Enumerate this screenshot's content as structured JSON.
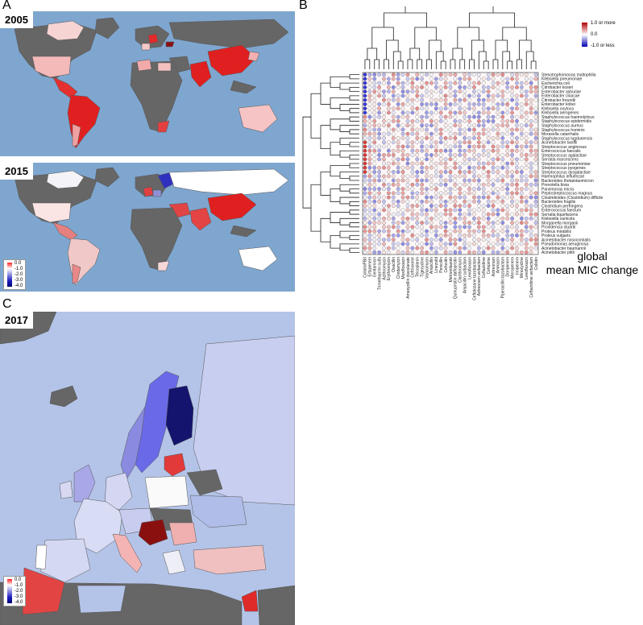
{
  "panel_labels": {
    "a": "A",
    "b": "B",
    "c": "C"
  },
  "maps": {
    "map2005": {
      "year": "2005"
    },
    "map2015": {
      "year": "2015"
    },
    "map2017": {
      "year": "2017"
    }
  },
  "map_legend": {
    "ticks": [
      "0.0",
      "-1.0",
      "-2.0",
      "-3.0",
      "-4.0"
    ]
  },
  "heatmap_legend": {
    "ticks": [
      "1.0 or more",
      "0.0",
      "-1.0 or less"
    ]
  },
  "global_label": {
    "line1": "global",
    "line2": "mean MIC change"
  },
  "colors": {
    "ocean": "#7fa6cf",
    "land_nodata": "#666666",
    "positive": "#e02020",
    "negative": "#20208a",
    "neutral": "#f7f7f7"
  },
  "chart_data": {
    "type": "heatmap",
    "rows": [
      "Stenotrophomonas maltophilia",
      "Klebsiella pneumoniae",
      "Escherichia coli",
      "Citrobacter koseri",
      "Enterobacter asburiae",
      "Enterobacter cloacae",
      "Citrobacter freundii",
      "Enterobacter kobei",
      "Klebsiella oxytoca",
      "Klebsiella aerogenes",
      "Staphylococcus haemolyticus",
      "Staphylococcus epidermidis",
      "Staphylococcus aureus",
      "Staphylococcus hominis",
      "Moraxella catarrhalis",
      "Staphylococcus lugdunensis",
      "Acinetobacter lwoffii",
      "Streptococcus anginosus",
      "Enterococcus faecalis",
      "Streptococcus agalactiae",
      "Serratia marcescens",
      "Streptococcus pneumoniae",
      "Streptococcus pyogenes",
      "Streptococcus dysgalactiae",
      "Haemophilus influenzae",
      "Bacteroides thetaiotaomicron",
      "Prevotella bivia",
      "Parvimonas micra",
      "Peptostreptococcus magnus",
      "Clostridioides (Clostridium) difficile",
      "Bacteroides fragilis",
      "Clostridium perfringens",
      "Enterococcus faecium",
      "Serratia liquefaciens",
      "Klebsiella variicola",
      "Morganella morganii",
      "Providencia stuartii",
      "Proteus mirabilis",
      "Proteus vulgaris",
      "Acinetobacter nosocomialis",
      "Pseudomonas aeruginosa",
      "Acinetobacter baumannii",
      "Acinetobacter pittii"
    ],
    "columns": [
      "ColistinPB0",
      "Ertapenem",
      "Gentamicin",
      "Trimethoprim sulfa",
      "Azithromycin",
      "Erythromycin",
      "Oxacillin",
      "Clindamycin",
      "Moxifloxacin",
      "Amoxycillin clavulanate",
      "Ceftriaxone",
      "Teicoplanin",
      "Tigecycline",
      "Vancomycin",
      "Ampicillin",
      "Linezolid",
      "Penicillin",
      "Cefoxitin",
      "Metronidazole",
      "Quinupristin dalfopristin",
      "Clarithromycin",
      "Ampicillin sulbactam",
      "Levofloxacin",
      "Ceftolozane tazobactam",
      "Aztreonam avibactam",
      "Ceftazidime",
      "Cefepime",
      "Aztreonam",
      "Amikacin",
      "Piperacillin tazobactam",
      "Doripenem",
      "Meropenem",
      "Imipenem",
      "Minocycline",
      "Levofloxacin",
      "Ceftazidime avibactam",
      "Colistin"
    ],
    "scale": {
      "min": -1.0,
      "max": 1.0,
      "min_label": "-1.0 or less",
      "max_label": "1.0 or more"
    },
    "map_scale": {
      "min": -4.0,
      "max": 0.0,
      "ticks": [
        0.0,
        -1.0,
        -2.0,
        -3.0,
        -4.0
      ]
    }
  }
}
